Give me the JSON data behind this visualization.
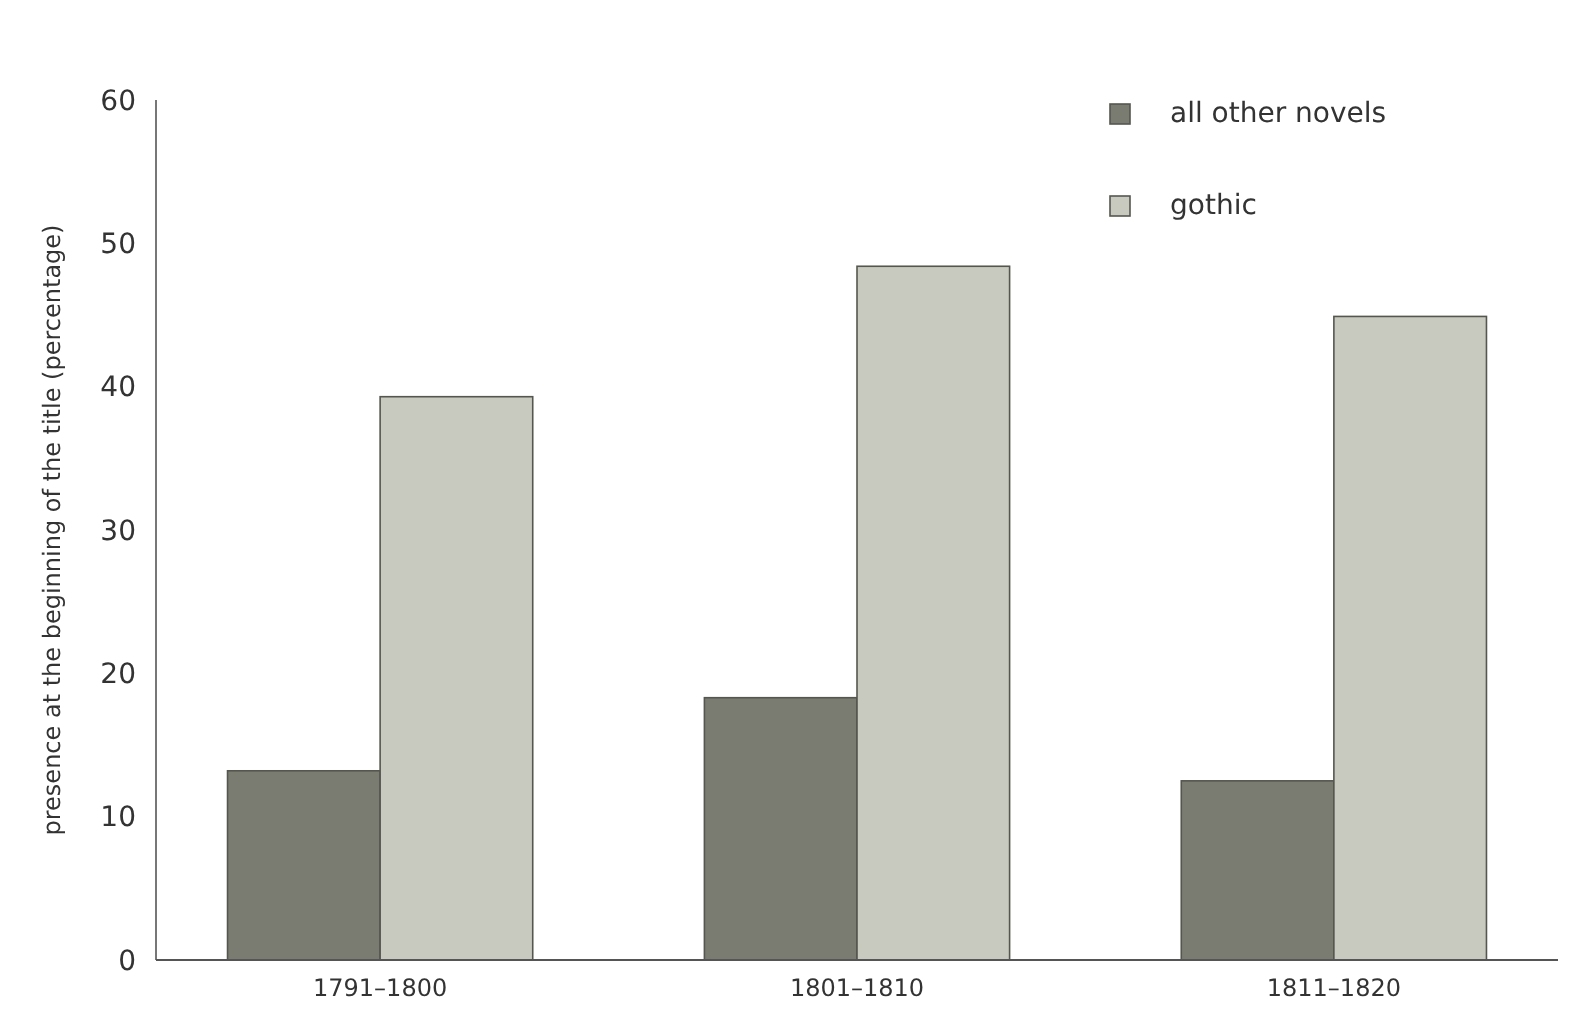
{
  "chart_data": {
    "type": "bar",
    "ylabel": "presence at the beginning of the title (percentage)",
    "categories": [
      "1791–1800",
      "1801–1810",
      "1811–1820"
    ],
    "series": [
      {
        "name": "all other novels",
        "color": "#7a7c72",
        "values": [
          13.2,
          18.3,
          12.5
        ]
      },
      {
        "name": "gothic",
        "color": "#c8c9bf",
        "values": [
          39.3,
          48.4,
          44.9
        ]
      }
    ],
    "ylim": [
      0,
      60
    ],
    "yticks": [
      0,
      10,
      20,
      30,
      40,
      50,
      60
    ],
    "grid": false,
    "legend": "top right"
  }
}
